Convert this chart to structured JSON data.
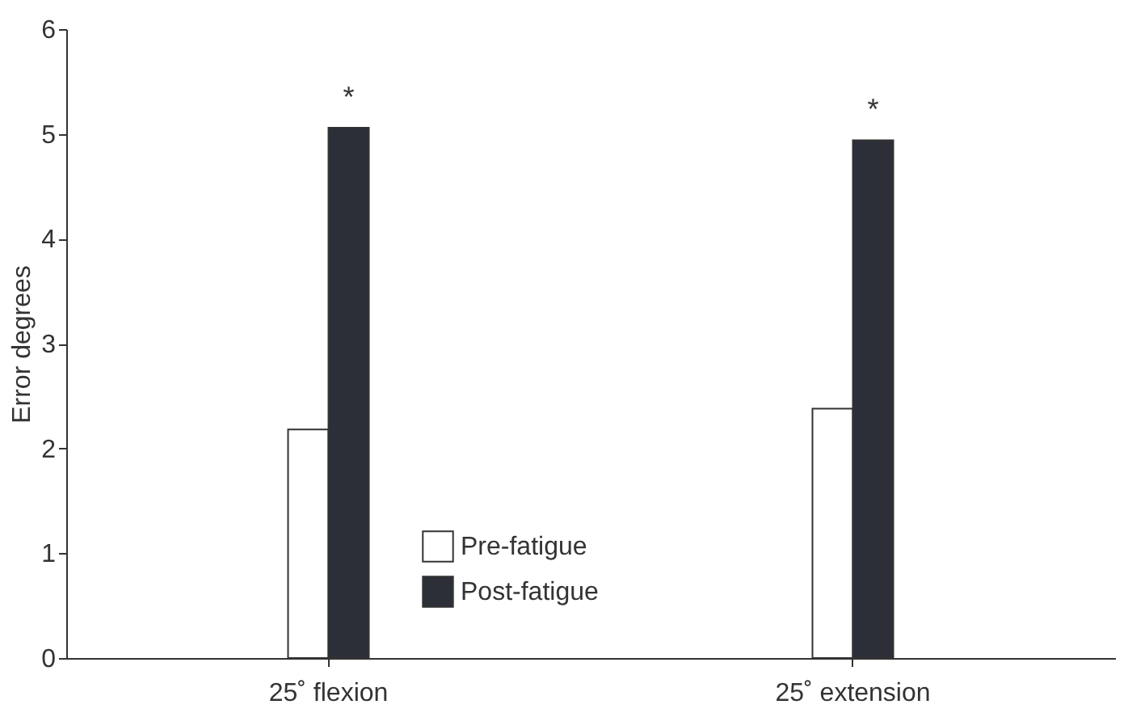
{
  "chart_data": {
    "type": "bar",
    "ylabel": "Error degrees",
    "categories": [
      "25˚ flexion",
      "25˚ extension"
    ],
    "series": [
      {
        "name": "Pre-fatigue",
        "color": "#ffffff",
        "values": [
          2.18,
          2.38
        ]
      },
      {
        "name": "Post-fatigue",
        "color": "#2d2f38",
        "values": [
          5.06,
          4.94
        ]
      }
    ],
    "ylim": [
      0,
      6
    ],
    "yticks": [
      0,
      1,
      2,
      3,
      4,
      5,
      6
    ],
    "grid": false,
    "legend": "bottom",
    "annotations": [
      {
        "text": "*",
        "x": "25˚ flexion",
        "y": 5.06
      },
      {
        "text": "*",
        "x": "25˚ extension",
        "y": 4.94
      }
    ]
  }
}
